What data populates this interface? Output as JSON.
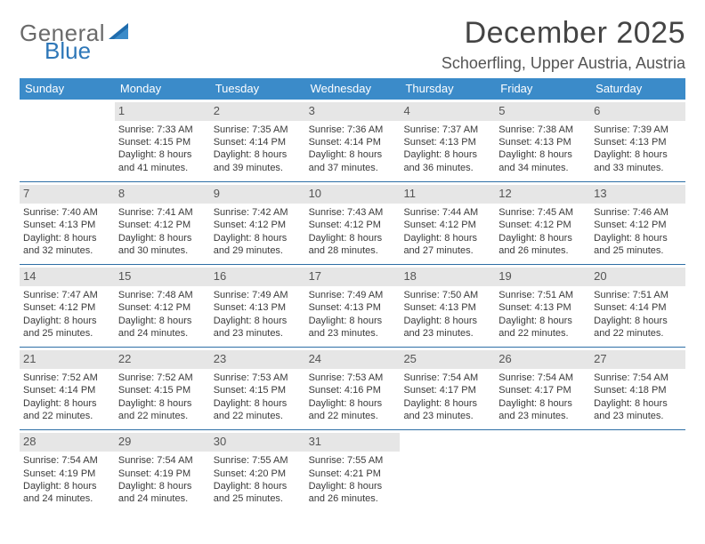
{
  "logo": {
    "word1": "General",
    "word2": "Blue",
    "word1_color": "#6a6a6a",
    "word2_color": "#2e77b8",
    "sail_color": "#1f6cad"
  },
  "title": "December 2025",
  "location": "Schoerfling, Upper Austria, Austria",
  "colors": {
    "header_bg": "#3b8bc9",
    "header_text": "#ffffff",
    "daynum_bg": "#e6e6e6",
    "daynum_text": "#555555",
    "rule": "#2e6fa6",
    "body_text": "#3a3a3a"
  },
  "typography": {
    "title_fontsize": 34,
    "location_fontsize": 18,
    "weekday_fontsize": 13,
    "daynum_fontsize": 13,
    "body_fontsize": 11
  },
  "weekdays": [
    "Sunday",
    "Monday",
    "Tuesday",
    "Wednesday",
    "Thursday",
    "Friday",
    "Saturday"
  ],
  "weeks": [
    [
      null,
      {
        "n": "1",
        "sr": "Sunrise: 7:33 AM",
        "ss": "Sunset: 4:15 PM",
        "d1": "Daylight: 8 hours",
        "d2": "and 41 minutes."
      },
      {
        "n": "2",
        "sr": "Sunrise: 7:35 AM",
        "ss": "Sunset: 4:14 PM",
        "d1": "Daylight: 8 hours",
        "d2": "and 39 minutes."
      },
      {
        "n": "3",
        "sr": "Sunrise: 7:36 AM",
        "ss": "Sunset: 4:14 PM",
        "d1": "Daylight: 8 hours",
        "d2": "and 37 minutes."
      },
      {
        "n": "4",
        "sr": "Sunrise: 7:37 AM",
        "ss": "Sunset: 4:13 PM",
        "d1": "Daylight: 8 hours",
        "d2": "and 36 minutes."
      },
      {
        "n": "5",
        "sr": "Sunrise: 7:38 AM",
        "ss": "Sunset: 4:13 PM",
        "d1": "Daylight: 8 hours",
        "d2": "and 34 minutes."
      },
      {
        "n": "6",
        "sr": "Sunrise: 7:39 AM",
        "ss": "Sunset: 4:13 PM",
        "d1": "Daylight: 8 hours",
        "d2": "and 33 minutes."
      }
    ],
    [
      {
        "n": "7",
        "sr": "Sunrise: 7:40 AM",
        "ss": "Sunset: 4:13 PM",
        "d1": "Daylight: 8 hours",
        "d2": "and 32 minutes."
      },
      {
        "n": "8",
        "sr": "Sunrise: 7:41 AM",
        "ss": "Sunset: 4:12 PM",
        "d1": "Daylight: 8 hours",
        "d2": "and 30 minutes."
      },
      {
        "n": "9",
        "sr": "Sunrise: 7:42 AM",
        "ss": "Sunset: 4:12 PM",
        "d1": "Daylight: 8 hours",
        "d2": "and 29 minutes."
      },
      {
        "n": "10",
        "sr": "Sunrise: 7:43 AM",
        "ss": "Sunset: 4:12 PM",
        "d1": "Daylight: 8 hours",
        "d2": "and 28 minutes."
      },
      {
        "n": "11",
        "sr": "Sunrise: 7:44 AM",
        "ss": "Sunset: 4:12 PM",
        "d1": "Daylight: 8 hours",
        "d2": "and 27 minutes."
      },
      {
        "n": "12",
        "sr": "Sunrise: 7:45 AM",
        "ss": "Sunset: 4:12 PM",
        "d1": "Daylight: 8 hours",
        "d2": "and 26 minutes."
      },
      {
        "n": "13",
        "sr": "Sunrise: 7:46 AM",
        "ss": "Sunset: 4:12 PM",
        "d1": "Daylight: 8 hours",
        "d2": "and 25 minutes."
      }
    ],
    [
      {
        "n": "14",
        "sr": "Sunrise: 7:47 AM",
        "ss": "Sunset: 4:12 PM",
        "d1": "Daylight: 8 hours",
        "d2": "and 25 minutes."
      },
      {
        "n": "15",
        "sr": "Sunrise: 7:48 AM",
        "ss": "Sunset: 4:12 PM",
        "d1": "Daylight: 8 hours",
        "d2": "and 24 minutes."
      },
      {
        "n": "16",
        "sr": "Sunrise: 7:49 AM",
        "ss": "Sunset: 4:13 PM",
        "d1": "Daylight: 8 hours",
        "d2": "and 23 minutes."
      },
      {
        "n": "17",
        "sr": "Sunrise: 7:49 AM",
        "ss": "Sunset: 4:13 PM",
        "d1": "Daylight: 8 hours",
        "d2": "and 23 minutes."
      },
      {
        "n": "18",
        "sr": "Sunrise: 7:50 AM",
        "ss": "Sunset: 4:13 PM",
        "d1": "Daylight: 8 hours",
        "d2": "and 23 minutes."
      },
      {
        "n": "19",
        "sr": "Sunrise: 7:51 AM",
        "ss": "Sunset: 4:13 PM",
        "d1": "Daylight: 8 hours",
        "d2": "and 22 minutes."
      },
      {
        "n": "20",
        "sr": "Sunrise: 7:51 AM",
        "ss": "Sunset: 4:14 PM",
        "d1": "Daylight: 8 hours",
        "d2": "and 22 minutes."
      }
    ],
    [
      {
        "n": "21",
        "sr": "Sunrise: 7:52 AM",
        "ss": "Sunset: 4:14 PM",
        "d1": "Daylight: 8 hours",
        "d2": "and 22 minutes."
      },
      {
        "n": "22",
        "sr": "Sunrise: 7:52 AM",
        "ss": "Sunset: 4:15 PM",
        "d1": "Daylight: 8 hours",
        "d2": "and 22 minutes."
      },
      {
        "n": "23",
        "sr": "Sunrise: 7:53 AM",
        "ss": "Sunset: 4:15 PM",
        "d1": "Daylight: 8 hours",
        "d2": "and 22 minutes."
      },
      {
        "n": "24",
        "sr": "Sunrise: 7:53 AM",
        "ss": "Sunset: 4:16 PM",
        "d1": "Daylight: 8 hours",
        "d2": "and 22 minutes."
      },
      {
        "n": "25",
        "sr": "Sunrise: 7:54 AM",
        "ss": "Sunset: 4:17 PM",
        "d1": "Daylight: 8 hours",
        "d2": "and 23 minutes."
      },
      {
        "n": "26",
        "sr": "Sunrise: 7:54 AM",
        "ss": "Sunset: 4:17 PM",
        "d1": "Daylight: 8 hours",
        "d2": "and 23 minutes."
      },
      {
        "n": "27",
        "sr": "Sunrise: 7:54 AM",
        "ss": "Sunset: 4:18 PM",
        "d1": "Daylight: 8 hours",
        "d2": "and 23 minutes."
      }
    ],
    [
      {
        "n": "28",
        "sr": "Sunrise: 7:54 AM",
        "ss": "Sunset: 4:19 PM",
        "d1": "Daylight: 8 hours",
        "d2": "and 24 minutes."
      },
      {
        "n": "29",
        "sr": "Sunrise: 7:54 AM",
        "ss": "Sunset: 4:19 PM",
        "d1": "Daylight: 8 hours",
        "d2": "and 24 minutes."
      },
      {
        "n": "30",
        "sr": "Sunrise: 7:55 AM",
        "ss": "Sunset: 4:20 PM",
        "d1": "Daylight: 8 hours",
        "d2": "and 25 minutes."
      },
      {
        "n": "31",
        "sr": "Sunrise: 7:55 AM",
        "ss": "Sunset: 4:21 PM",
        "d1": "Daylight: 8 hours",
        "d2": "and 26 minutes."
      },
      null,
      null,
      null
    ]
  ]
}
